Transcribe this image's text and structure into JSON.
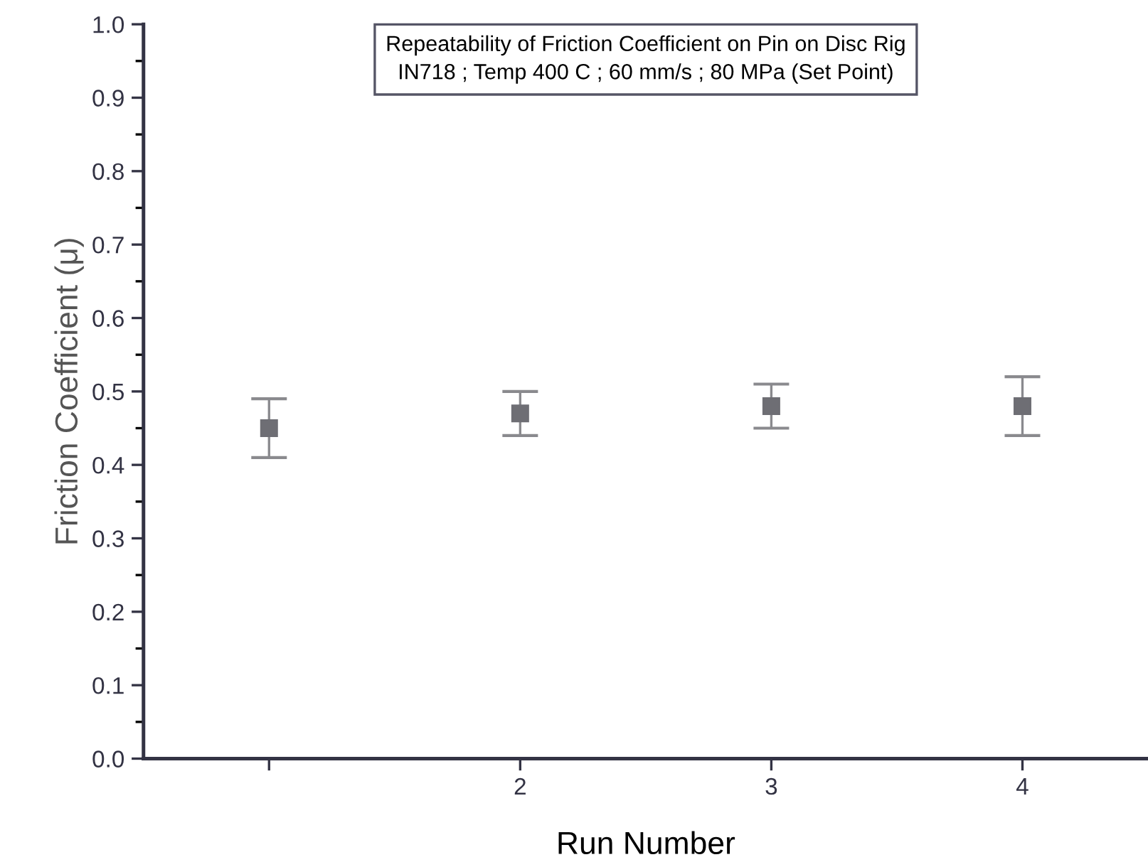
{
  "chart_data": {
    "type": "scatter",
    "title": "Repeatability of Friction Coefficient on Pin on Disc Rig",
    "subtitle": "IN718 ; Temp 400 C ; 60 mm/s ; 80 MPa (Set Point)",
    "xlabel": "Run Number",
    "ylabel": "Friction Coefficient (μ)",
    "x": [
      1,
      2,
      3,
      4
    ],
    "series": [
      {
        "color": "#6e6e74",
        "values": [
          0.45,
          0.47,
          0.48,
          0.48
        ],
        "errors": [
          [
            0.41,
            0.49
          ],
          [
            0.44,
            0.5
          ],
          [
            0.45,
            0.51
          ],
          [
            0.44,
            0.52
          ]
        ]
      }
    ],
    "xlim": [
      0.5,
      4.5
    ],
    "xticks": [
      {
        "value": 1,
        "label": null
      },
      2,
      3,
      4
    ],
    "ylim": [
      0,
      1
    ],
    "yticks": [
      {
        "value": 0,
        "label": "0.0"
      },
      0.1,
      0.2,
      0.3,
      0.4,
      0.5,
      0.6,
      0.7,
      0.8,
      0.9,
      {
        "value": 1,
        "label": "1.0"
      }
    ],
    "marker": "square",
    "grid": false,
    "legend": false
  }
}
